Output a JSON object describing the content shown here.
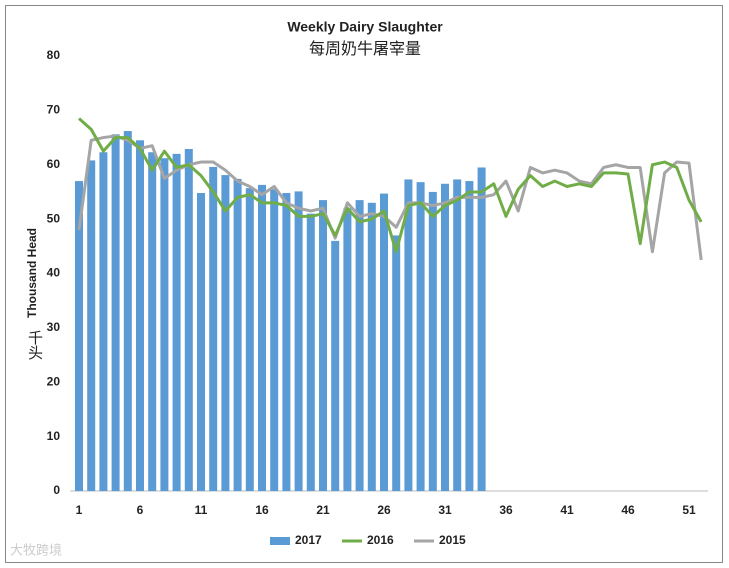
{
  "chart_data": {
    "type": "bar-line",
    "title": "Weekly Dairy Slaughter",
    "subtitle": "每周奶牛屠宰量",
    "y_label": "Thousand Head",
    "y_label_cn": "千头",
    "watermark": "大牧跨境",
    "categories": [
      1,
      null,
      null,
      null,
      null,
      6,
      null,
      null,
      null,
      null,
      11,
      null,
      null,
      null,
      null,
      16,
      null,
      null,
      null,
      null,
      21,
      null,
      null,
      null,
      null,
      26,
      null,
      null,
      null,
      null,
      31,
      null,
      null,
      null,
      null,
      36,
      null,
      null,
      null,
      null,
      41,
      null,
      null,
      null,
      null,
      46,
      null,
      null,
      null,
      null,
      51,
      null
    ],
    "series": [
      {
        "name": "2017",
        "kind": "bar",
        "color": "#5b9bd5",
        "values": [
          57,
          60.8,
          62.3,
          65.6,
          66.2,
          64.5,
          62.3,
          61.2,
          62,
          62.9,
          54.8,
          59.6,
          58.1,
          57.4,
          55.7,
          56.3,
          55.5,
          54.8,
          55.1,
          51,
          53.5,
          46,
          52,
          53.5,
          53,
          54.7,
          47,
          57.3,
          56.8,
          55,
          56.5,
          57.3,
          57,
          59.5,
          null,
          null,
          null,
          null,
          null,
          null,
          null,
          null,
          null,
          null,
          null,
          null,
          null,
          null,
          null,
          null,
          null,
          null
        ]
      },
      {
        "name": "2016",
        "kind": "line",
        "color": "#70ad47",
        "values": [
          68.5,
          66.5,
          62.5,
          65,
          65,
          63,
          59,
          62.5,
          59.5,
          60,
          58,
          55,
          51.5,
          54,
          54.5,
          53,
          53,
          52.5,
          50.5,
          50.5,
          51,
          47,
          52,
          49.5,
          50,
          51.5,
          44,
          52.5,
          53,
          50.5,
          52.5,
          53.5,
          55,
          55,
          56.5,
          50.5,
          55.5,
          58,
          56,
          57,
          56,
          56.5,
          56,
          58.5,
          58.5,
          58.3,
          45.5,
          60,
          60.5,
          59.5,
          53.5,
          49.5
        ]
      },
      {
        "name": "2015",
        "kind": "line",
        "color": "#a5a5a5",
        "values": [
          48,
          64.5,
          65,
          65.3,
          64.5,
          63,
          63.5,
          57.5,
          59,
          60,
          60.5,
          60.5,
          59,
          57,
          56,
          54.5,
          56,
          53,
          52,
          51.5,
          52,
          46.5,
          53,
          50.5,
          51,
          50.5,
          48.5,
          53,
          53,
          52.5,
          53,
          54,
          54,
          54,
          54.5,
          57,
          51.5,
          59.5,
          58.5,
          59,
          58.5,
          57,
          56.5,
          59.5,
          60,
          59.5,
          59.5,
          44,
          58.5,
          60.5,
          60.3,
          42.5
        ]
      }
    ],
    "ylim": [
      0,
      80
    ],
    "yticks": [
      0,
      10,
      20,
      30,
      40,
      50,
      60,
      70,
      80
    ],
    "grid": false,
    "legend": "bottom"
  }
}
